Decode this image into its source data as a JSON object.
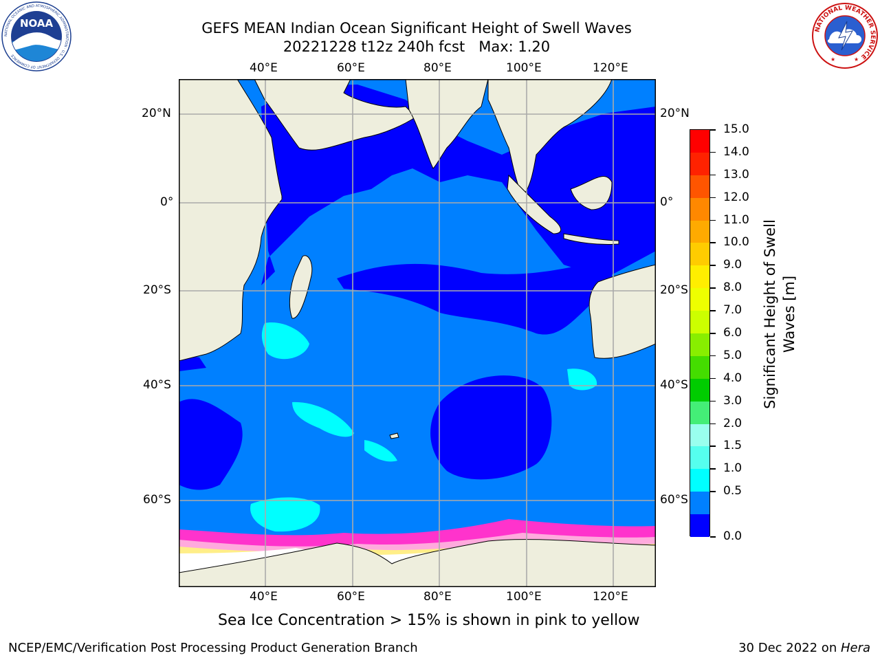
{
  "title": {
    "line1": "GEFS MEAN Indian Ocean Significant Height of Swell Waves",
    "line2": "20221228 t12z 240h fcst   Max: 1.20"
  },
  "map": {
    "lon_ticks": [
      "40°E",
      "60°E",
      "80°E",
      "100°E",
      "120°E"
    ],
    "lat_ticks": [
      "20°N",
      "0°",
      "20°S",
      "40°S",
      "60°S"
    ],
    "colors": {
      "land": "#eeeedd",
      "ocean_0_0_5": "#0000ff",
      "ocean_0_5_1": "#0080ff",
      "ocean_1_1_5": "#00ffff",
      "ice_pink": "#ff33cc",
      "ice_light": "#ffaadd",
      "ice_yellow": "#ffee88",
      "grid": "#aaaaaa"
    }
  },
  "colorbar": {
    "title_line1": "Significant Height of Swell",
    "title_line2": "Waves [m]",
    "labels": [
      "15.0",
      "14.0",
      "13.0",
      "12.0",
      "11.0",
      "10.0",
      "9.0",
      "8.0",
      "7.0",
      "6.0",
      "5.0",
      "4.0",
      "3.0",
      "2.0",
      "1.5",
      "1.0",
      "0.5",
      "0.0"
    ],
    "colors": [
      "#ff0000",
      "#ff2200",
      "#ff5500",
      "#ff8800",
      "#ffaa00",
      "#ffcc00",
      "#ffee00",
      "#eeff00",
      "#ccff00",
      "#88ee00",
      "#44dd00",
      "#00cc00",
      "#44ee77",
      "#99ffee",
      "#55ffee",
      "#00ffff",
      "#0080ff",
      "#0000ff"
    ]
  },
  "subtitle": "Sea Ice Concentration > 15% is shown in pink to yellow",
  "footer": {
    "left": "NCEP/EMC/Verification Post Processing Product Generation Branch",
    "right_date": "30 Dec 2022 on ",
    "right_host": "Hera"
  },
  "logos": {
    "noaa_text": "NOAA",
    "noaa_ring": "NATIONAL OCEANIC AND ATMOSPHERIC ADMINISTRATION · U.S. DEPARTMENT OF COMMERCE",
    "nws_ring": "NATIONAL WEATHER SERVICE"
  }
}
